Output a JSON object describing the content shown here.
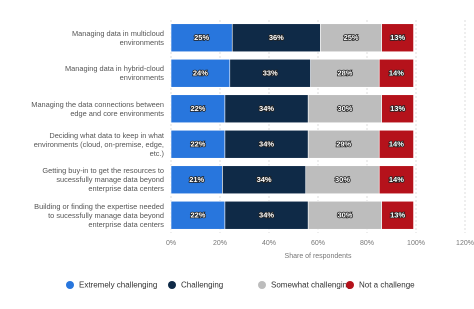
{
  "chart_data": {
    "type": "stacked-bar-horizontal",
    "categories": [
      "Managing data in multicloud environments",
      "Managing data in hybrid-cloud environments",
      "Managing the data connections between edge and core environments",
      "Deciding what data to keep in what environments (cloud, on-premise, edge, etc.)",
      "Getting buy-in to get the resources to sucessfully manage data beyond enterprise data centers",
      "Building or finding the expertise needed to sucessfully manage data beyond enterprise data centers"
    ],
    "series": [
      {
        "name": "Extremely challenging",
        "color": "#2876dd",
        "values": [
          25,
          24,
          22,
          22,
          21,
          22
        ],
        "value_labels": [
          "25%",
          "24%",
          "22%",
          "22%",
          "21%",
          "22%"
        ]
      },
      {
        "name": "Challenging",
        "color": "#0f2a47",
        "values": [
          36,
          33,
          34,
          34,
          34,
          34
        ],
        "value_labels": [
          "36%",
          "33%",
          "34%",
          "34%",
          "34%",
          "34%"
        ]
      },
      {
        "name": "Somewhat challenging",
        "color": "#bdbdbd",
        "values": [
          25,
          28,
          30,
          29,
          30,
          30
        ],
        "value_labels": [
          "25%",
          "28%",
          "30%",
          "29%",
          "30%",
          "30%"
        ]
      },
      {
        "name": "Not a challenge",
        "color": "#b5121b",
        "values": [
          13,
          14,
          13,
          14,
          14,
          13
        ],
        "value_labels": [
          "13%",
          "14%",
          "13%",
          "14%",
          "14%",
          "13%"
        ]
      }
    ],
    "xlabel": "Share of respondents",
    "xlim": [
      0,
      120
    ],
    "xticks": [
      {
        "value": 0,
        "label": "0%"
      },
      {
        "value": 20,
        "label": "20%"
      },
      {
        "value": 40,
        "label": "40%"
      },
      {
        "value": 60,
        "label": "60%"
      },
      {
        "value": 80,
        "label": "80%"
      },
      {
        "value": 100,
        "label": "100%"
      },
      {
        "value": 120,
        "label": "120%"
      }
    ],
    "grid": true
  }
}
